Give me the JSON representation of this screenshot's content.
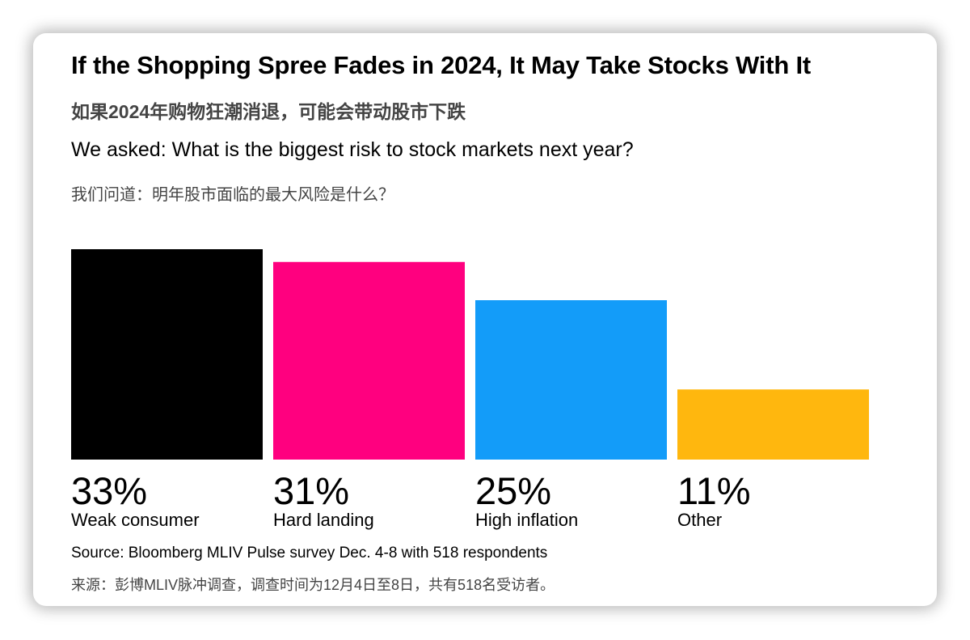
{
  "header": {
    "title": "If the Shopping Spree Fades in 2024, It May Take Stocks With It",
    "subtitle_cn": "如果2024年购物狂潮消退，可能会带动股市下跌",
    "question": "We asked: What is the biggest risk to stock markets next year?",
    "question_cn": "我们问道：明年股市面临的最大风险是什么？"
  },
  "footer": {
    "source": "Source: Bloomberg MLIV Pulse survey Dec. 4-8 with 518 respondents",
    "source_cn": "来源：彭博MLIV脉冲调查，调查时间为12月4日至8日，共有518名受访者。"
  },
  "chart_data": {
    "type": "bar",
    "categories": [
      "Weak consumer",
      "Hard landing",
      "High inflation",
      "Other"
    ],
    "values": [
      33,
      31,
      25,
      11
    ],
    "value_labels": [
      "33%",
      "31%",
      "25%",
      "11%"
    ],
    "colors": [
      "#000000",
      "#ff007f",
      "#139cf9",
      "#ffb70e"
    ],
    "title": "If the Shopping Spree Fades in 2024, It May Take Stocks With It",
    "xlabel": "",
    "ylabel": "",
    "ylim": [
      0,
      33
    ],
    "grid": false
  }
}
